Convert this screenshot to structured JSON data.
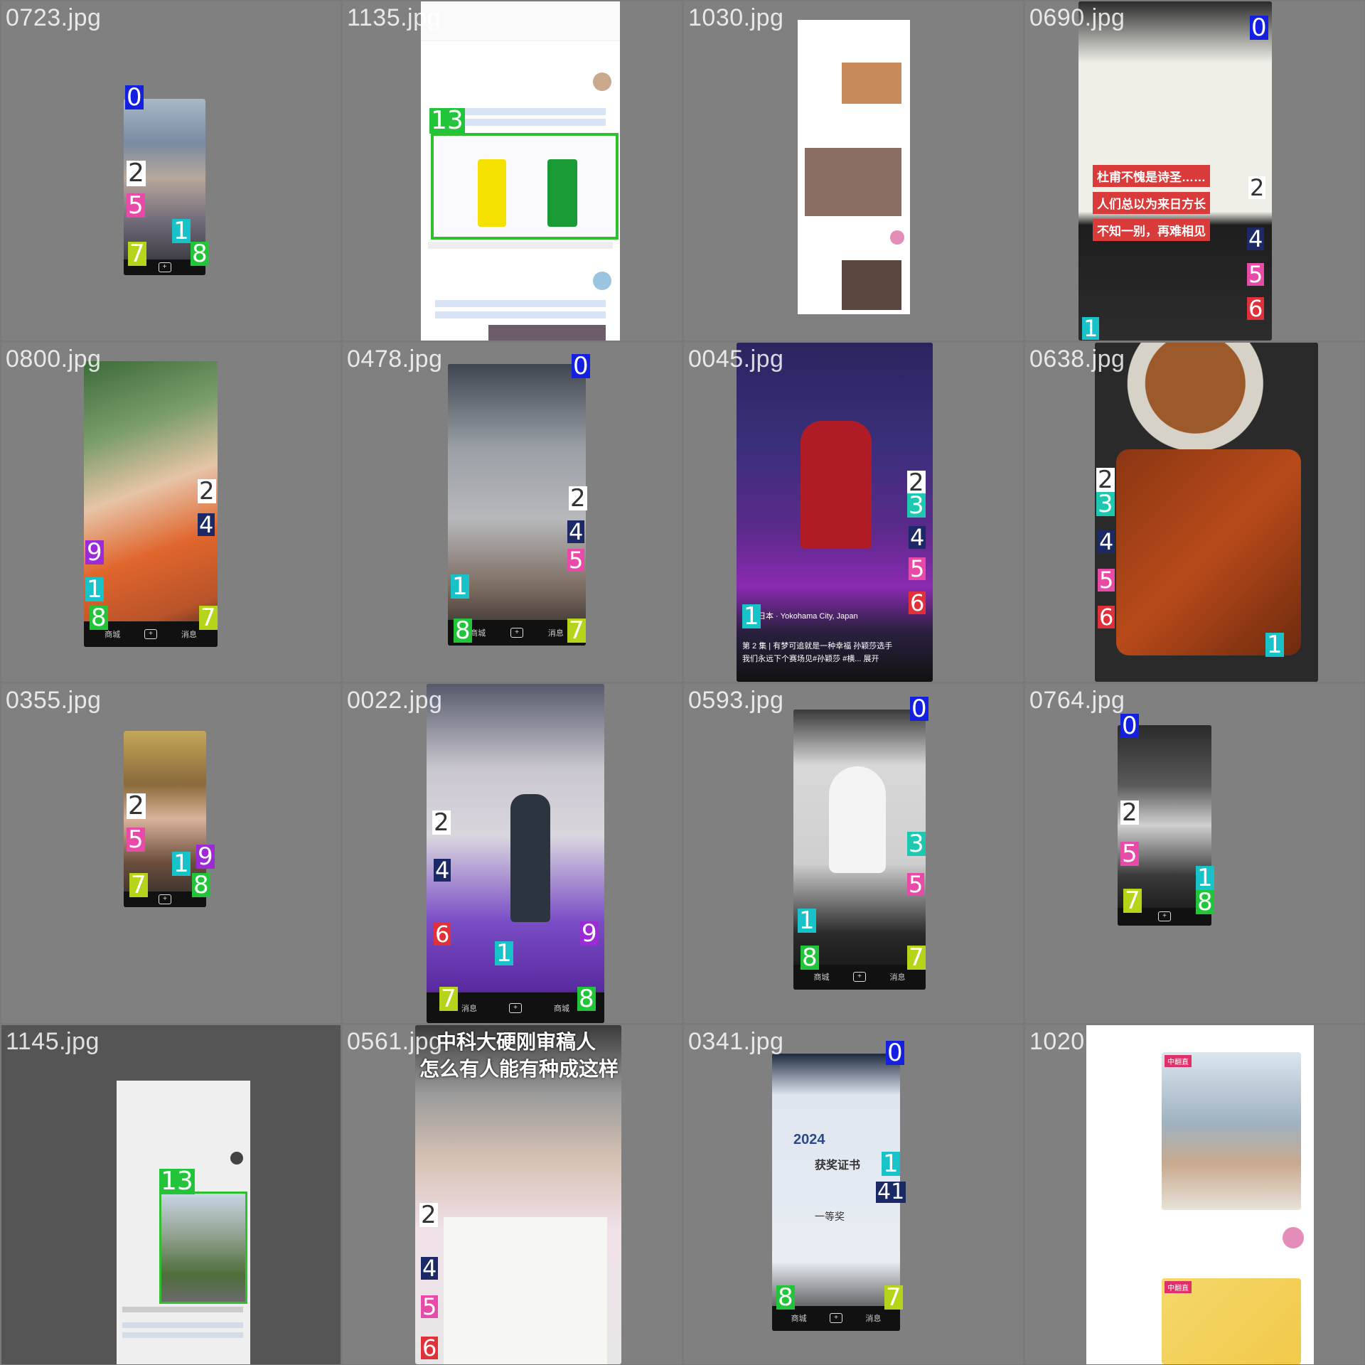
{
  "cells": [
    {
      "filename": "0723.jpg"
    },
    {
      "filename": "1135.jpg"
    },
    {
      "filename": "1030.jpg"
    },
    {
      "filename": "0690.jpg"
    },
    {
      "filename": "0800.jpg"
    },
    {
      "filename": "0478.jpg"
    },
    {
      "filename": "0045.jpg"
    },
    {
      "filename": "0638.jpg"
    },
    {
      "filename": "0355.jpg"
    },
    {
      "filename": "0022.jpg"
    },
    {
      "filename": "0593.jpg"
    },
    {
      "filename": "0764.jpg"
    },
    {
      "filename": "1145.jpg"
    },
    {
      "filename": "0561.jpg"
    },
    {
      "filename": "0341.jpg"
    },
    {
      "filename": "1020.jpg"
    }
  ],
  "labels": {
    "n0": "0",
    "n1": "1",
    "n2": "2",
    "n3": "3",
    "n4": "4",
    "n5": "5",
    "n6": "6",
    "n7": "7",
    "n8": "8",
    "n9": "9",
    "n13": "13",
    "n41": "41"
  },
  "nav": {
    "shop": "商城",
    "msg": "消息"
  },
  "c0690": {
    "line1": "杜甫不愧是诗圣……",
    "line2": "人们总以为来日方长",
    "line3": "不知一别，再难相见"
  },
  "c0045": {
    "location": "日本 · Yokohama City, Japan",
    "caption": "第 2 集 | 有梦可追就是一种幸福 孙颖莎选手",
    "caption2": "我们永远下个赛场见#孙颖莎 #横... 展开"
  },
  "c0561": {
    "headline1": "中科大硬刚审稿人",
    "headline2": "怎么有人能有种成这样"
  },
  "c0341": {
    "cert_year": "2024",
    "cert_title": "获奖证书",
    "cert_prize": "一等奖"
  },
  "c1020": {
    "badge": "中翻直",
    "badge2": "中翻直"
  },
  "colors": {
    "tag_blue": "#1420e0",
    "tag_cyan": "#17c3c9",
    "tag_white": "#ffffff",
    "tag_teal": "#1ec8b0",
    "tag_navy": "#1b2a66",
    "tag_pink": "#e84aa8",
    "tag_red": "#e0303a",
    "tag_lime": "#b5d41a",
    "tag_green": "#22c43a",
    "tag_purple": "#9c2bd6",
    "highlight_green": "#2fbf2f"
  }
}
